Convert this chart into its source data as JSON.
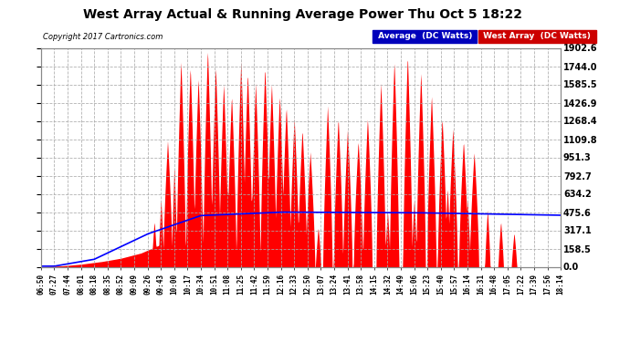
{
  "title": "West Array Actual & Running Average Power Thu Oct 5 18:22",
  "copyright": "Copyright 2017 Cartronics.com",
  "yticks": [
    0.0,
    158.5,
    317.1,
    475.6,
    634.2,
    792.7,
    951.3,
    1109.8,
    1268.4,
    1426.9,
    1585.5,
    1744.0,
    1902.6
  ],
  "ymax": 1902.6,
  "ymin": 0.0,
  "plot_bg": "#ffffff",
  "grid_color": "#aaaaaa",
  "red_color": "#ff0000",
  "blue_color": "#0000ff",
  "legend_avg_bg": "#0000bb",
  "legend_west_bg": "#cc0000",
  "x_labels": [
    "06:50",
    "07:27",
    "07:44",
    "08:01",
    "08:18",
    "08:35",
    "08:52",
    "09:09",
    "09:26",
    "09:43",
    "10:00",
    "10:17",
    "10:34",
    "10:51",
    "11:08",
    "11:25",
    "11:42",
    "11:59",
    "12:16",
    "12:33",
    "12:50",
    "13:07",
    "13:24",
    "13:41",
    "13:58",
    "14:15",
    "14:32",
    "14:49",
    "15:06",
    "15:23",
    "15:40",
    "15:57",
    "16:14",
    "16:31",
    "16:48",
    "17:05",
    "17:22",
    "17:39",
    "17:56",
    "18:14"
  ],
  "spike_centers": [
    9.5,
    10.5,
    11.2,
    11.8,
    12.5,
    13.1,
    13.7,
    14.3,
    15.0,
    15.5,
    16.1,
    16.8,
    17.3,
    17.9,
    18.4,
    19.0,
    19.6,
    20.2,
    21.5,
    22.3,
    23.0,
    23.8,
    24.5,
    25.5,
    26.5,
    27.5,
    28.5,
    29.3,
    30.1,
    30.9,
    31.7,
    32.5
  ],
  "spike_heights": [
    1100,
    1800,
    1750,
    1650,
    1900,
    1750,
    1600,
    1500,
    1800,
    1700,
    1600,
    1750,
    1600,
    1500,
    1400,
    1300,
    1200,
    1000,
    1400,
    1300,
    1200,
    1100,
    1300,
    1600,
    1800,
    1850,
    1700,
    1500,
    1300,
    1200,
    1100,
    1000
  ]
}
